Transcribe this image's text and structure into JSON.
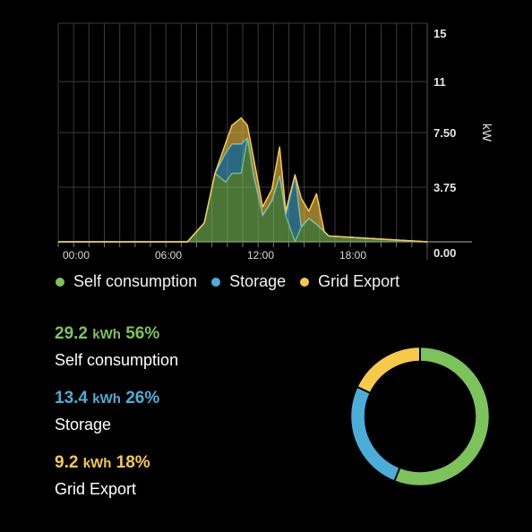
{
  "chart_data": {
    "type": "area",
    "ylabel": "kW",
    "y_ticks": [
      "15",
      "11",
      "7.50",
      "3.75",
      "0.00"
    ],
    "y_tick_values": [
      15,
      11,
      7.5,
      3.75,
      0
    ],
    "ylim": [
      0,
      15
    ],
    "x_ticks": [
      "00:00",
      "06:00",
      "12:00",
      "18:00"
    ],
    "x_tick_hours": [
      0,
      6,
      12,
      18
    ],
    "xlim": [
      0,
      24
    ],
    "grid": true,
    "legend_position": "bottom",
    "x": [
      0,
      7.6,
      8.4,
      9.5,
      10.2,
      10.9,
      11.3,
      11.9,
      12.3,
      12.7,
      13.3,
      13.9,
      14.4,
      14.8,
      15.4,
      15.8,
      16.3,
      16.8,
      17.3,
      17.6,
      24
    ],
    "series": [
      {
        "name": "Self consumption",
        "color": "#7dc35b",
        "values": [
          0,
          0,
          0,
          1.3,
          4.7,
          4.1,
          4.7,
          4.7,
          7.1,
          4.6,
          1.8,
          2.8,
          4.5,
          1.8,
          0,
          1.0,
          1.6,
          1.2,
          0.7,
          0.4,
          0
        ]
      },
      {
        "name": "Storage",
        "color": "#4aaed9",
        "values": [
          0,
          0,
          0,
          0,
          0,
          2.0,
          2.0,
          2.0,
          0,
          0,
          0,
          0,
          0,
          0,
          4.6,
          0,
          0,
          0,
          0,
          0,
          0
        ]
      },
      {
        "name": "Grid Export",
        "color": "#f7c948",
        "values": [
          0,
          0,
          0,
          0,
          0,
          0.7,
          1.3,
          1.8,
          0.9,
          1.2,
          0.6,
          0.8,
          2.0,
          0.3,
          0,
          2.0,
          0.5,
          2.1,
          0,
          0,
          0
        ]
      }
    ]
  },
  "summary": [
    {
      "value": "29.2",
      "unit": "kWh",
      "percent": "56%",
      "label": "Self consumption",
      "color": "#7dc35b",
      "fraction": 0.56
    },
    {
      "value": "13.4",
      "unit": "kWh",
      "percent": "26%",
      "label": "Storage",
      "color": "#4aaed9",
      "fraction": 0.26
    },
    {
      "value": "9.2",
      "unit": "kWh",
      "percent": "18%",
      "label": "Grid Export",
      "color": "#f7c948",
      "fraction": 0.18
    }
  ]
}
